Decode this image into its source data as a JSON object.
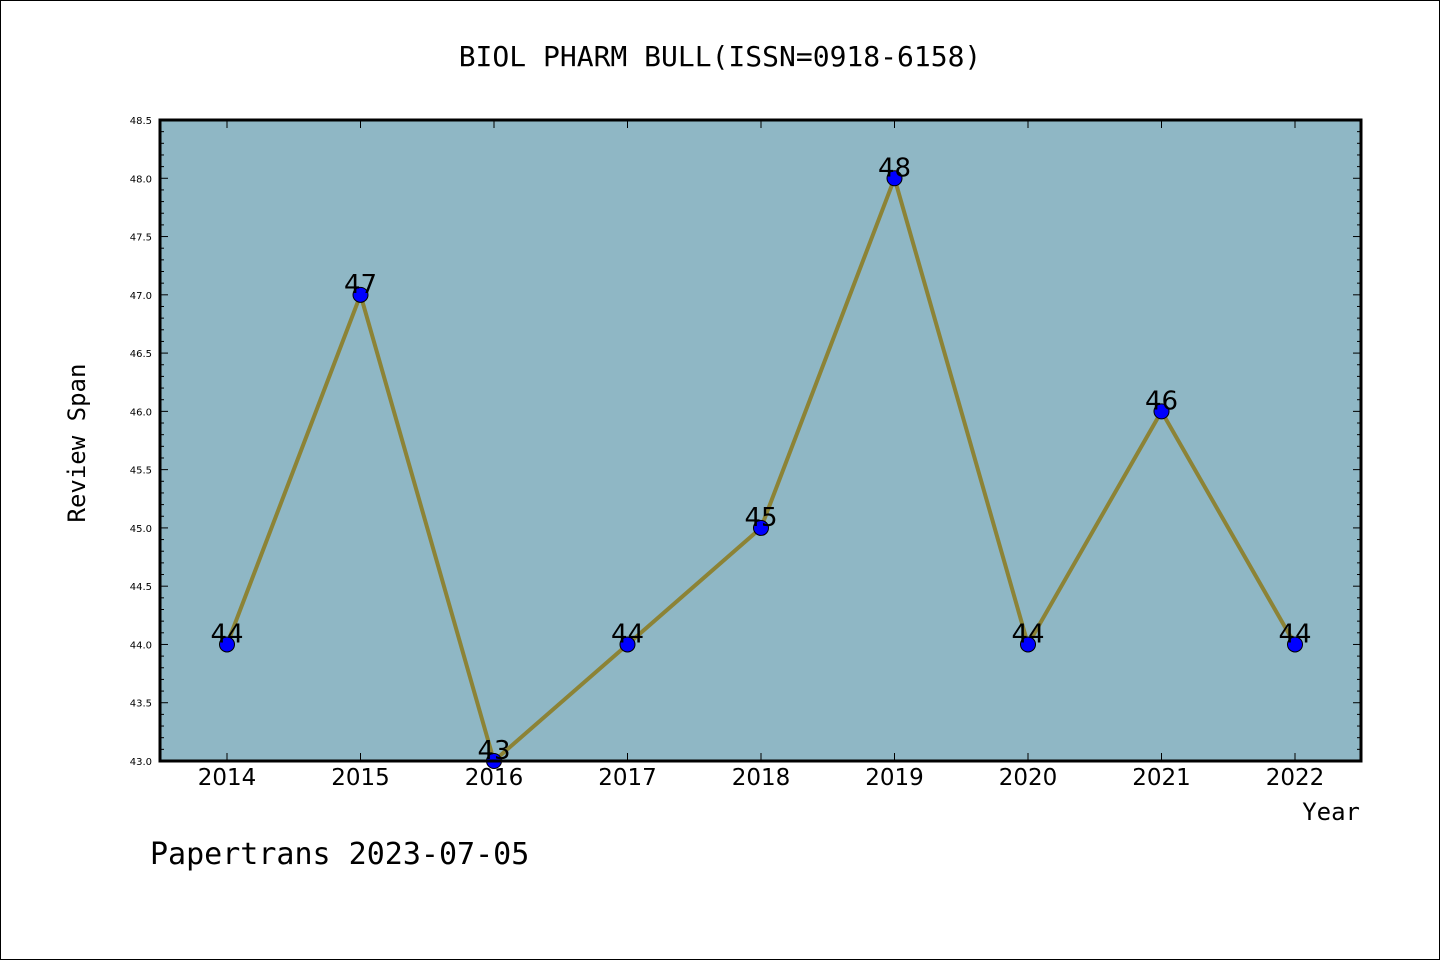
{
  "chart_data": {
    "type": "line",
    "title": "BIOL PHARM BULL(ISSN=0918-6158)",
    "xlabel": "Year",
    "ylabel": "Review Span",
    "categories": [
      "2014",
      "2015",
      "2016",
      "2017",
      "2018",
      "2019",
      "2020",
      "2021",
      "2022"
    ],
    "values": [
      44,
      47,
      43,
      44,
      45,
      48,
      44,
      46,
      44
    ],
    "data_labels": [
      "44",
      "47",
      "43",
      "44",
      "45",
      "48",
      "44",
      "46",
      "44"
    ],
    "ylim": [
      43.0,
      48.5
    ],
    "yticks": [
      43.0,
      43.5,
      44.0,
      44.5,
      45.0,
      45.5,
      46.0,
      46.5,
      47.0,
      47.5,
      48.0,
      48.5
    ],
    "ytick_labels": [
      "43.0",
      "43.5",
      "44.0",
      "44.5",
      "45.0",
      "45.5",
      "46.0",
      "46.5",
      "47.0",
      "47.5",
      "48.0",
      "48.5"
    ],
    "grid": false,
    "colors": {
      "plot_background": "#8fb7c5",
      "line": "#8c8336",
      "marker": "#0000ff"
    }
  },
  "footer": {
    "text": "Papertrans 2023-07-05"
  }
}
